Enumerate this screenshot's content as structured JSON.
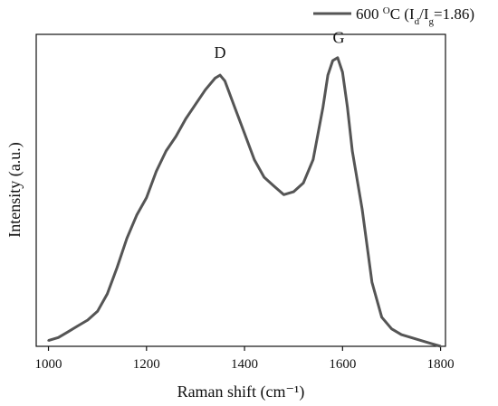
{
  "chart_data": {
    "type": "line",
    "title": "",
    "xlabel": "Raman shift (cm⁻¹)",
    "ylabel": "Intensity (a.u.)",
    "xlim": [
      975,
      1810
    ],
    "ylim": [
      0,
      1.07
    ],
    "x_ticks": [
      1000,
      1200,
      1400,
      1600,
      1800
    ],
    "y_ticks_shown": false,
    "grid": false,
    "legend_position": "top-right",
    "legend_label": {
      "main": "600 ",
      "sup": "O",
      "rest": "C (I",
      "sub1": "d",
      "slash": "/I",
      "sub2": "g",
      "tail": "=1.86)"
    },
    "series": [
      {
        "color": "#555555",
        "x": [
          1000,
          1020,
          1040,
          1060,
          1080,
          1100,
          1120,
          1140,
          1160,
          1180,
          1200,
          1220,
          1240,
          1260,
          1280,
          1300,
          1320,
          1340,
          1350,
          1360,
          1380,
          1400,
          1420,
          1440,
          1460,
          1480,
          1500,
          1520,
          1540,
          1560,
          1570,
          1580,
          1590,
          1600,
          1610,
          1620,
          1640,
          1660,
          1680,
          1700,
          1720,
          1740,
          1760,
          1780,
          1800
        ],
        "y": [
          0.02,
          0.03,
          0.05,
          0.07,
          0.09,
          0.12,
          0.18,
          0.27,
          0.37,
          0.45,
          0.51,
          0.6,
          0.67,
          0.72,
          0.78,
          0.83,
          0.88,
          0.92,
          0.93,
          0.91,
          0.82,
          0.73,
          0.64,
          0.58,
          0.55,
          0.52,
          0.53,
          0.56,
          0.64,
          0.82,
          0.93,
          0.98,
          0.99,
          0.94,
          0.82,
          0.67,
          0.47,
          0.22,
          0.1,
          0.06,
          0.04,
          0.03,
          0.02,
          0.01,
          0.0
        ]
      }
    ],
    "annotations": [
      {
        "text": "D",
        "x": 1350,
        "y": 0.99
      },
      {
        "text": "G",
        "x": 1592,
        "y": 1.04
      }
    ]
  }
}
